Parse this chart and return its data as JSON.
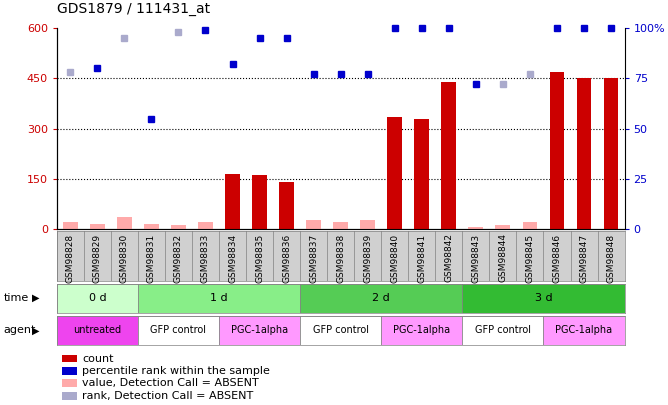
{
  "title": "GDS1879 / 111431_at",
  "samples": [
    "GSM98828",
    "GSM98829",
    "GSM98830",
    "GSM98831",
    "GSM98832",
    "GSM98833",
    "GSM98834",
    "GSM98835",
    "GSM98836",
    "GSM98837",
    "GSM98838",
    "GSM98839",
    "GSM98840",
    "GSM98841",
    "GSM98842",
    "GSM98843",
    "GSM98844",
    "GSM98845",
    "GSM98846",
    "GSM98847",
    "GSM98848"
  ],
  "count_values": [
    20,
    15,
    35,
    15,
    10,
    20,
    165,
    160,
    140,
    25,
    20,
    25,
    335,
    330,
    440,
    5,
    10,
    20,
    470,
    450,
    450
  ],
  "count_absent": [
    true,
    true,
    true,
    true,
    true,
    true,
    false,
    false,
    false,
    true,
    true,
    true,
    false,
    false,
    false,
    true,
    true,
    true,
    false,
    false,
    false
  ],
  "percentile_values": [
    78,
    80,
    95,
    55,
    98,
    99,
    82,
    95,
    95,
    77,
    77,
    77,
    100,
    100,
    100,
    72,
    72,
    77,
    100,
    100,
    100
  ],
  "percentile_absent": [
    true,
    false,
    true,
    false,
    true,
    false,
    false,
    false,
    false,
    false,
    false,
    false,
    false,
    false,
    false,
    false,
    true,
    true,
    false,
    false,
    false
  ],
  "ylim_left": [
    0,
    600
  ],
  "ylim_right": [
    0,
    100
  ],
  "yticks_left": [
    0,
    150,
    300,
    450,
    600
  ],
  "yticks_right": [
    0,
    25,
    50,
    75,
    100
  ],
  "ytick_labels_right": [
    "0",
    "25",
    "50",
    "75",
    "100%"
  ],
  "time_groups": [
    {
      "label": "0 d",
      "start": 0,
      "end": 3
    },
    {
      "label": "1 d",
      "start": 3,
      "end": 9
    },
    {
      "label": "2 d",
      "start": 9,
      "end": 15
    },
    {
      "label": "3 d",
      "start": 15,
      "end": 21
    }
  ],
  "time_colors": [
    "#ccffcc",
    "#88ee88",
    "#55cc55",
    "#33bb33"
  ],
  "agent_groups": [
    {
      "label": "untreated",
      "start": 0,
      "end": 3
    },
    {
      "label": "GFP control",
      "start": 3,
      "end": 6
    },
    {
      "label": "PGC-1alpha",
      "start": 6,
      "end": 9
    },
    {
      "label": "GFP control",
      "start": 9,
      "end": 12
    },
    {
      "label": "PGC-1alpha",
      "start": 12,
      "end": 15
    },
    {
      "label": "GFP control",
      "start": 15,
      "end": 18
    },
    {
      "label": "PGC-1alpha",
      "start": 18,
      "end": 21
    }
  ],
  "agent_colors": {
    "untreated": "#ee44ee",
    "GFP control": "#ffffff",
    "PGC-1alpha": "#ff99ff"
  },
  "bar_color_present": "#cc0000",
  "bar_color_absent": "#ffaaaa",
  "dot_color_present": "#0000cc",
  "dot_color_absent": "#aaaacc",
  "sample_label_bg": "#d0d0d0",
  "legend_items": [
    {
      "marker": "s",
      "color": "#cc0000",
      "label": "count"
    },
    {
      "marker": "s",
      "color": "#0000cc",
      "label": "percentile rank within the sample"
    },
    {
      "marker": "s",
      "color": "#ffaaaa",
      "label": "value, Detection Call = ABSENT"
    },
    {
      "marker": "s",
      "color": "#aaaacc",
      "label": "rank, Detection Call = ABSENT"
    }
  ]
}
